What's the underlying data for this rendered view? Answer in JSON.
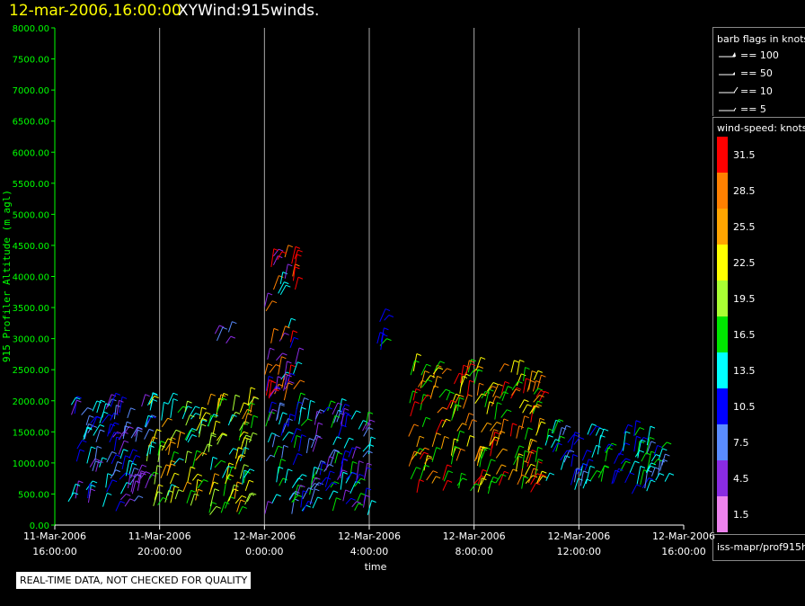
{
  "header": {
    "date": "12-mar-2006,16:00:00",
    "title": "XYWind:915winds."
  },
  "legend": {
    "title": "barb flags in knots",
    "flags": [
      {
        "label": "== 100",
        "type": "pennant"
      },
      {
        "label": "== 50",
        "type": "pennant-small"
      },
      {
        "label": "== 10",
        "type": "full"
      },
      {
        "label": "== 5",
        "type": "half"
      }
    ]
  },
  "wind_speed_legend": {
    "title": "wind-speed: knots",
    "levels": [
      {
        "label": "31.5",
        "color": "#ff0000"
      },
      {
        "label": "28.5",
        "color": "#ff8000"
      },
      {
        "label": "25.5",
        "color": "#ffa500"
      },
      {
        "label": "22.5",
        "color": "#ffff00"
      },
      {
        "label": "19.5",
        "color": "#aaff33"
      },
      {
        "label": "16.5",
        "color": "#00e600"
      },
      {
        "label": "13.5",
        "color": "#00ffff"
      },
      {
        "label": "10.5",
        "color": "#0000ff"
      },
      {
        "label": "7.5",
        "color": "#5a8cff"
      },
      {
        "label": "4.5",
        "color": "#8a2be2"
      },
      {
        "label": "1.5",
        "color": "#ee82ee"
      }
    ]
  },
  "source_label": "iss-mapr/prof915h",
  "notice": "REAL-TIME DATA, NOT CHECKED FOR QUALITY",
  "colors": {
    "axis": "#00ff00",
    "grid": "#aaaaaa",
    "title_date": "#ffff00"
  },
  "chart_data": {
    "type": "scatter",
    "title": "XYWind:915winds.",
    "xlabel": "time",
    "ylabel": "915 Profiler Altitude (m agl)",
    "ylim": [
      0,
      8000
    ],
    "yticks": [
      "0.00",
      "500.00",
      "1000.00",
      "1500.00",
      "2000.00",
      "2500.00",
      "3000.00",
      "3500.00",
      "4000.00",
      "4500.00",
      "5000.00",
      "5500.00",
      "6000.00",
      "6500.00",
      "7000.00",
      "7500.00",
      "8000.00"
    ],
    "xticks": [
      {
        "date": "11-Mar-2006",
        "time": "16:00:00"
      },
      {
        "date": "11-Mar-2006",
        "time": "20:00:00"
      },
      {
        "date": "12-Mar-2006",
        "time": "0:00:00"
      },
      {
        "date": "12-Mar-2006",
        "time": "4:00:00"
      },
      {
        "date": "12-Mar-2006",
        "time": "8:00:00"
      },
      {
        "date": "12-Mar-2006",
        "time": "12:00:00"
      },
      {
        "date": "12-Mar-2006",
        "time": "16:00:00"
      }
    ],
    "xlim_hours": [
      0,
      24
    ],
    "grid": true,
    "series_note": "wind barbs colored by wind speed (knots)",
    "clusters": [
      {
        "t0": 0.5,
        "t1": 3.5,
        "h0": 200,
        "h1": 1950,
        "speeds": [
          4.5,
          7.5,
          10.5,
          13.5
        ]
      },
      {
        "t0": 3.5,
        "t1": 7.5,
        "h0": 150,
        "h1": 2000,
        "speeds": [
          13.5,
          16.5,
          19.5,
          22.5,
          25.5
        ]
      },
      {
        "t0": 6.0,
        "t1": 6.8,
        "h0": 2900,
        "h1": 3200,
        "speeds": [
          7.5,
          4.5
        ]
      },
      {
        "t0": 8.0,
        "t1": 9.2,
        "h0": 2000,
        "h1": 4400,
        "speeds": [
          10.5,
          13.5,
          28.5,
          31.5,
          4.5
        ]
      },
      {
        "t0": 8.0,
        "t1": 12.0,
        "h0": 150,
        "h1": 1900,
        "speeds": [
          4.5,
          7.5,
          10.5,
          13.5,
          16.5
        ]
      },
      {
        "t0": 12.0,
        "t1": 12.7,
        "h0": 2800,
        "h1": 3300,
        "speeds": [
          10.5,
          16.5,
          22.5
        ]
      },
      {
        "t0": 13.5,
        "t1": 18.5,
        "h0": 500,
        "h1": 2500,
        "speeds": [
          22.5,
          25.5,
          28.5,
          31.5,
          16.5
        ]
      },
      {
        "t0": 18.5,
        "t1": 23.3,
        "h0": 500,
        "h1": 1500,
        "speeds": [
          13.5,
          16.5,
          10.5,
          7.5
        ]
      }
    ]
  }
}
